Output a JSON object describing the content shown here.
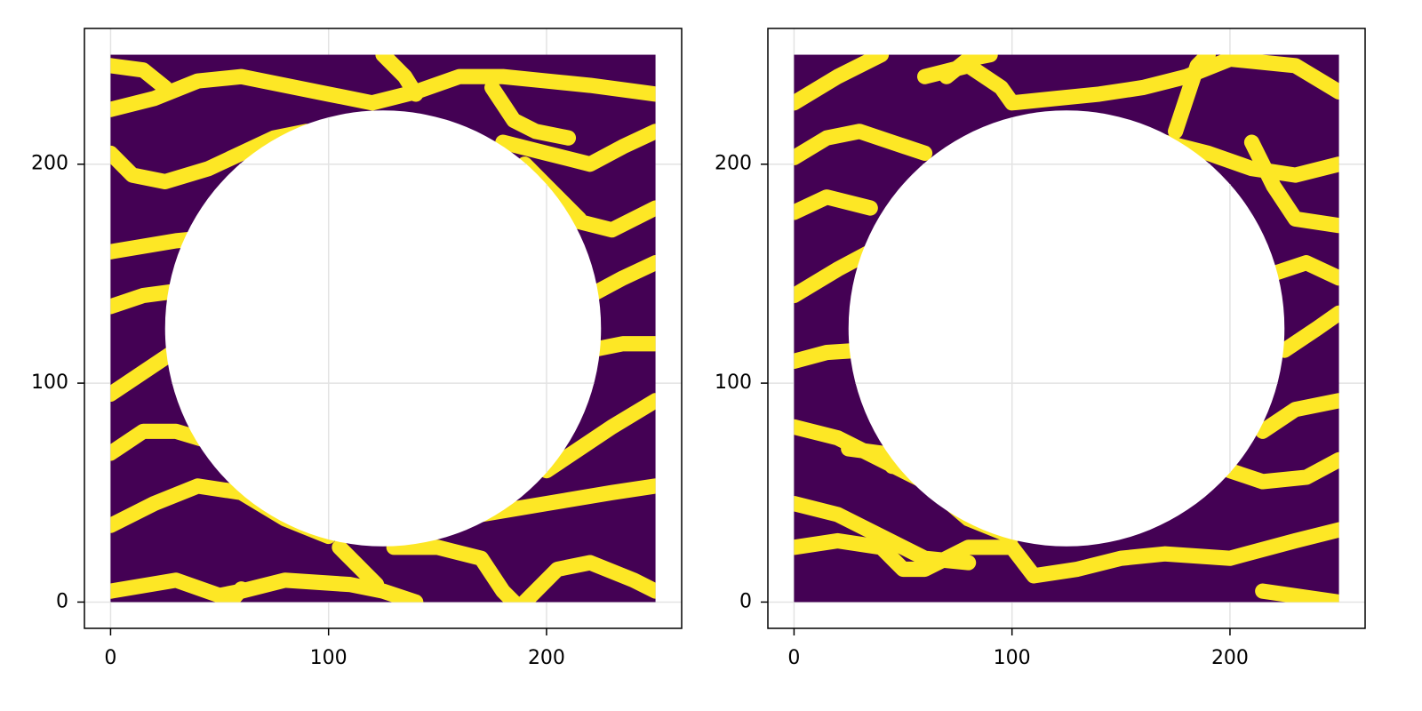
{
  "chart_data": [
    {
      "type": "heatmap",
      "xlim": [
        -12,
        262
      ],
      "ylim": [
        -12,
        262
      ],
      "xticks": [
        0,
        100,
        200
      ],
      "yticks": [
        0,
        100,
        200
      ],
      "grid": true,
      "extent": [
        0,
        250
      ],
      "background_color": "#440154",
      "color": "#fde725",
      "line_width": 7,
      "mask": {
        "cx": 125,
        "cy": 125,
        "r": 100
      },
      "streaks": [
        {
          "x": [
            0,
            20,
            40,
            60,
            80,
            100,
            120,
            140,
            160,
            180,
            200,
            220,
            250
          ],
          "y": [
            225,
            230,
            238,
            240,
            236,
            232,
            228,
            233,
            240,
            240,
            238,
            236,
            232
          ]
        },
        {
          "x": [
            0,
            15,
            25
          ],
          "y": [
            245,
            243,
            235
          ]
        },
        {
          "x": [
            0,
            10,
            25,
            45,
            60,
            75,
            90
          ],
          "y": [
            205,
            195,
            192,
            198,
            205,
            212,
            215
          ]
        },
        {
          "x": [
            0,
            30,
            40
          ],
          "y": [
            160,
            165,
            166
          ]
        },
        {
          "x": [
            0,
            15,
            30
          ],
          "y": [
            135,
            140,
            142
          ]
        },
        {
          "x": [
            0,
            15,
            30
          ],
          "y": [
            95,
            105,
            115
          ]
        },
        {
          "x": [
            0,
            15,
            30,
            50
          ],
          "y": [
            68,
            78,
            78,
            72
          ]
        },
        {
          "x": [
            0,
            20,
            40,
            60,
            80,
            100
          ],
          "y": [
            35,
            45,
            53,
            50,
            38,
            30
          ]
        },
        {
          "x": [
            0,
            30,
            50,
            60,
            80,
            110,
            125,
            140
          ],
          "y": [
            5,
            10,
            3,
            5,
            10,
            8,
            5,
            0
          ]
        },
        {
          "x": [
            105,
            115,
            122
          ],
          "y": [
            25,
            15,
            8
          ]
        },
        {
          "x": [
            130,
            150,
            170,
            180,
            185
          ],
          "y": [
            25,
            25,
            20,
            5,
            0
          ]
        },
        {
          "x": [
            170,
            200,
            230,
            250
          ],
          "y": [
            40,
            45,
            50,
            53
          ]
        },
        {
          "x": [
            200,
            215,
            230,
            250
          ],
          "y": [
            60,
            70,
            80,
            92
          ]
        },
        {
          "x": [
            220,
            235,
            250
          ],
          "y": [
            115,
            118,
            118
          ]
        },
        {
          "x": [
            220,
            235,
            250
          ],
          "y": [
            140,
            148,
            155
          ]
        },
        {
          "x": [
            210,
            230,
            250
          ],
          "y": [
            175,
            170,
            180
          ]
        },
        {
          "x": [
            180,
            200,
            220,
            235,
            250
          ],
          "y": [
            210,
            205,
            200,
            208,
            215
          ]
        },
        {
          "x": [
            190,
            200,
            215
          ],
          "y": [
            200,
            190,
            175
          ]
        },
        {
          "x": [
            175,
            185,
            195,
            210
          ],
          "y": [
            235,
            220,
            215,
            212
          ]
        },
        {
          "x": [
            125,
            135,
            140
          ],
          "y": [
            250,
            240,
            232
          ]
        },
        {
          "x": [
            190,
            205,
            220,
            240,
            250
          ],
          "y": [
            0,
            15,
            18,
            10,
            5
          ]
        },
        {
          "x": [
            55,
            60
          ],
          "y": [
            0,
            6
          ]
        }
      ]
    },
    {
      "type": "heatmap",
      "xlim": [
        -12,
        262
      ],
      "ylim": [
        -12,
        262
      ],
      "xticks": [
        0,
        100,
        200
      ],
      "yticks": [
        0,
        100,
        200
      ],
      "grid": true,
      "extent": [
        0,
        250
      ],
      "background_color": "#440154",
      "color": "#fde725",
      "line_width": 7,
      "mask": {
        "cx": 125,
        "cy": 125,
        "r": 100
      },
      "streaks": [
        {
          "x": [
            0,
            20,
            40
          ],
          "y": [
            228,
            240,
            250
          ]
        },
        {
          "x": [
            0,
            15,
            30,
            45,
            60
          ],
          "y": [
            203,
            212,
            215,
            210,
            205
          ]
        },
        {
          "x": [
            0,
            15,
            35
          ],
          "y": [
            178,
            185,
            180
          ]
        },
        {
          "x": [
            0,
            20,
            35
          ],
          "y": [
            140,
            152,
            160
          ]
        },
        {
          "x": [
            0,
            15,
            30
          ],
          "y": [
            110,
            114,
            115
          ]
        },
        {
          "x": [
            0,
            20,
            40,
            60,
            80,
            100
          ],
          "y": [
            80,
            75,
            65,
            55,
            38,
            30
          ]
        },
        {
          "x": [
            0,
            20,
            40,
            60,
            80
          ],
          "y": [
            45,
            40,
            30,
            20,
            18
          ]
        },
        {
          "x": [
            0,
            20,
            40,
            50,
            60,
            80,
            100,
            110,
            130,
            150,
            170,
            200,
            230,
            250
          ],
          "y": [
            25,
            28,
            25,
            15,
            15,
            25,
            25,
            12,
            15,
            20,
            22,
            20,
            28,
            33
          ]
        },
        {
          "x": [
            25,
            40,
            45
          ],
          "y": [
            70,
            68,
            62
          ]
        },
        {
          "x": [
            60,
            80,
            95,
            100,
            120,
            140,
            160,
            180,
            200,
            230,
            250
          ],
          "y": [
            240,
            245,
            235,
            228,
            230,
            232,
            235,
            240,
            248,
            245,
            233
          ]
        },
        {
          "x": [
            70,
            80,
            90
          ],
          "y": [
            240,
            248,
            250
          ]
        },
        {
          "x": [
            175,
            180,
            185,
            190
          ],
          "y": [
            215,
            230,
            245,
            250
          ]
        },
        {
          "x": [
            170,
            190,
            210,
            230,
            250
          ],
          "y": [
            210,
            205,
            198,
            195,
            200
          ]
        },
        {
          "x": [
            210,
            220,
            230,
            250
          ],
          "y": [
            210,
            190,
            175,
            172
          ]
        },
        {
          "x": [
            220,
            235,
            250
          ],
          "y": [
            150,
            155,
            148
          ]
        },
        {
          "x": [
            225,
            240,
            250
          ],
          "y": [
            115,
            125,
            132
          ]
        },
        {
          "x": [
            215,
            230,
            250
          ],
          "y": [
            78,
            88,
            92
          ]
        },
        {
          "x": [
            200,
            215,
            235,
            250
          ],
          "y": [
            60,
            55,
            57,
            65
          ]
        },
        {
          "x": [
            215,
            250
          ],
          "y": [
            5,
            0
          ]
        }
      ]
    }
  ]
}
